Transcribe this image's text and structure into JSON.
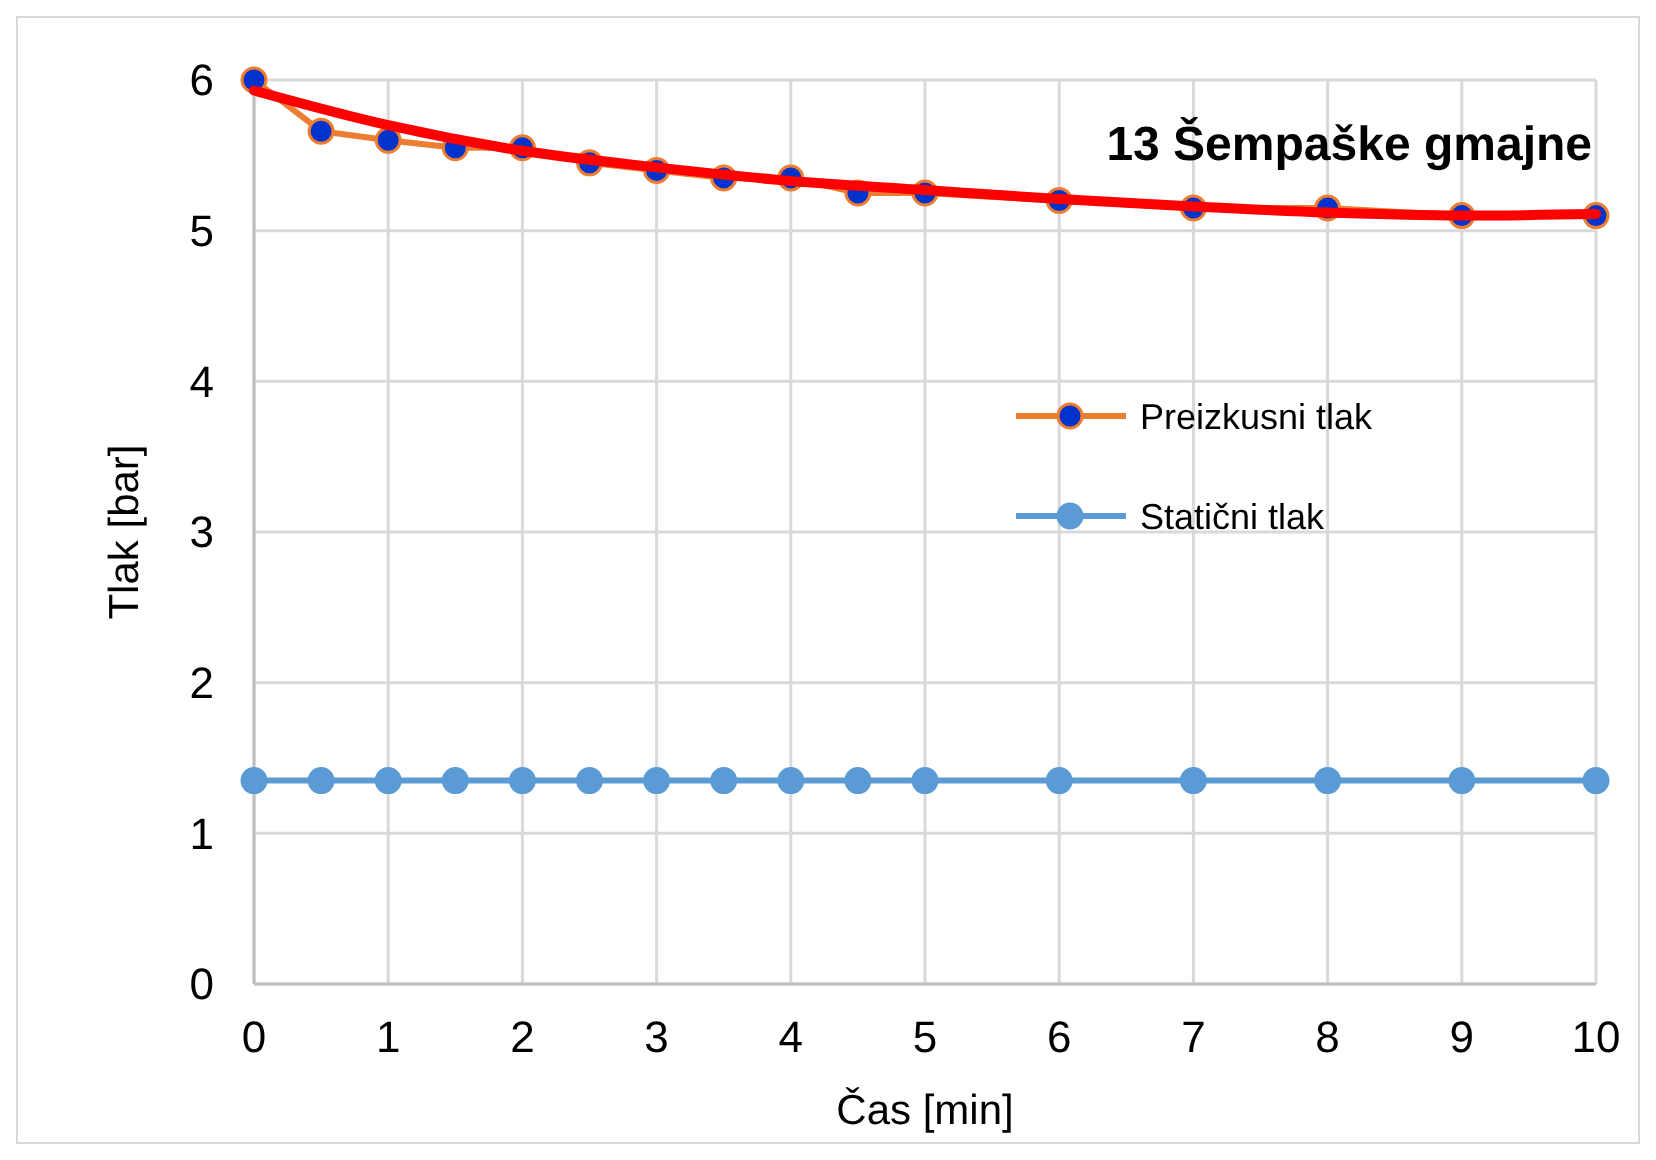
{
  "chart_data": {
    "type": "line",
    "title": "13 Šempaške gmajne",
    "xlabel": "Čas [min]",
    "ylabel": "Tlak [bar]",
    "x": [
      0,
      0.5,
      1,
      1.5,
      2,
      2.5,
      3,
      3.5,
      4,
      4.5,
      5,
      6,
      7,
      8,
      9,
      10
    ],
    "series": [
      {
        "name": "Preizkusni tlak",
        "color": "#ed7d31",
        "marker": "circle",
        "values": [
          6.0,
          5.66,
          5.6,
          5.55,
          5.55,
          5.45,
          5.4,
          5.35,
          5.35,
          5.25,
          5.25,
          5.2,
          5.15,
          5.15,
          5.1,
          5.1
        ]
      },
      {
        "name": "Statični tlak",
        "color": "#5b9bd5",
        "marker": "circle",
        "values": [
          1.35,
          1.35,
          1.35,
          1.35,
          1.35,
          1.35,
          1.35,
          1.35,
          1.35,
          1.35,
          1.35,
          1.35,
          1.35,
          1.35,
          1.35,
          1.35
        ]
      },
      {
        "type": "line",
        "color": "#ff0000",
        "marker": "none",
        "x": [
          0,
          1,
          2,
          3,
          4,
          5,
          6,
          7,
          8,
          9,
          10
        ],
        "values": [
          5.93,
          5.7,
          5.53,
          5.42,
          5.33,
          5.27,
          5.21,
          5.16,
          5.12,
          5.1,
          5.11
        ]
      }
    ],
    "xlim": [
      0,
      10
    ],
    "xticks": [
      0,
      1,
      2,
      3,
      4,
      5,
      6,
      7,
      8,
      9,
      10
    ],
    "ylim": [
      0,
      6
    ],
    "yticks": [
      0,
      1,
      2,
      3,
      4,
      5,
      6
    ],
    "grid": true,
    "legend": "right"
  }
}
